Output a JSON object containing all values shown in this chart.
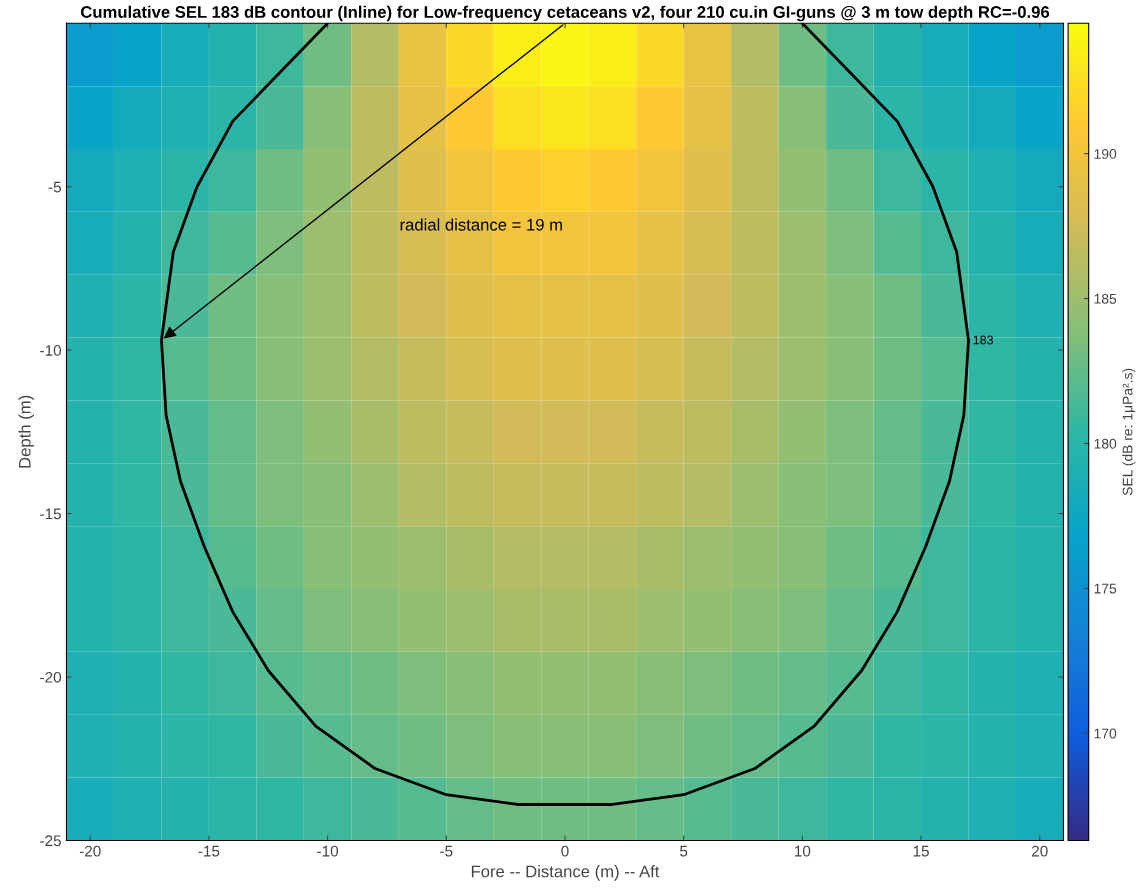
{
  "chart_data": {
    "type": "heatmap",
    "title": "Cumulative SEL 183 dB contour (Inline) for Low-frequency cetaceans v2, four 210 cu.in GI-guns @ 3 m tow depth RC=-0.96",
    "xlabel": "Fore -- Distance (m) -- Aft",
    "ylabel": "Depth (m)",
    "clabel": "SEL (dB re: 1μPa².s)",
    "xlim": [
      -21,
      21
    ],
    "ylim": [
      -25,
      0
    ],
    "xticks": [
      -20,
      -15,
      -10,
      -5,
      0,
      5,
      10,
      15,
      20
    ],
    "yticks": [
      -25,
      -20,
      -15,
      -10,
      -5
    ],
    "clim": [
      166.3,
      194.5
    ],
    "cticks": [
      170,
      175,
      180,
      185,
      190
    ],
    "cells": [
      [
        176,
        177,
        178.5,
        179.5,
        181,
        183,
        186,
        189.5,
        192,
        193.5,
        194,
        193.5,
        192,
        189.5,
        186,
        183,
        181,
        179.5,
        178.5,
        177,
        176
      ],
      [
        177,
        178,
        179,
        180,
        181.5,
        184,
        186.5,
        189,
        191,
        192.5,
        193,
        192.5,
        191,
        189,
        186.5,
        184,
        181.5,
        180,
        179,
        178,
        177
      ],
      [
        178,
        179,
        180,
        181,
        183,
        184.5,
        186.5,
        188.5,
        190,
        191,
        191.5,
        191,
        190,
        188.5,
        186.5,
        184.5,
        183,
        181,
        180,
        179,
        178
      ],
      [
        178.5,
        179.5,
        181,
        182,
        183.5,
        185,
        186.5,
        188,
        189,
        190,
        190,
        190,
        189,
        188,
        186.5,
        185,
        183.5,
        182,
        181,
        179.5,
        178.5
      ],
      [
        179,
        180,
        181.5,
        183,
        184,
        185,
        186.5,
        187.5,
        188.5,
        189,
        189,
        189,
        188.5,
        187.5,
        186.5,
        185,
        184,
        183,
        181.5,
        180,
        179
      ],
      [
        179.5,
        180.5,
        182,
        183,
        184,
        185,
        186,
        187,
        188,
        188.5,
        188.5,
        188.5,
        188,
        187,
        186,
        185,
        184,
        183,
        182,
        180.5,
        179.5
      ],
      [
        179.5,
        180.5,
        181.5,
        182.5,
        183.5,
        184.5,
        185.5,
        186.5,
        187,
        187.5,
        187.5,
        187.5,
        187,
        186.5,
        185.5,
        184.5,
        183.5,
        182.5,
        181.5,
        180.5,
        179.5
      ],
      [
        179.5,
        180.5,
        181.5,
        182.5,
        183.5,
        184,
        185,
        186,
        186.5,
        187,
        187,
        187,
        186.5,
        186,
        185,
        184,
        183.5,
        182.5,
        181.5,
        180.5,
        179.5
      ],
      [
        179.5,
        180,
        181,
        182,
        183,
        184,
        184.5,
        185,
        185.5,
        186,
        186,
        186,
        185.5,
        185,
        184.5,
        184,
        183,
        182,
        181,
        180,
        179.5
      ],
      [
        179.5,
        180,
        181,
        181.5,
        182.5,
        183.5,
        184,
        184.5,
        185,
        185.5,
        185.5,
        185.5,
        185,
        184.5,
        184,
        183.5,
        182.5,
        181.5,
        181,
        180,
        179.5
      ],
      [
        179,
        179.5,
        180.5,
        181,
        182,
        182.5,
        183,
        183.5,
        184,
        184.5,
        184.5,
        184.5,
        184,
        183.5,
        183,
        182.5,
        182,
        181,
        180.5,
        179.5,
        179
      ],
      [
        179,
        179.5,
        180,
        180.5,
        181.5,
        182,
        182.5,
        183,
        183.5,
        184,
        184,
        184,
        183.5,
        183,
        182.5,
        182,
        181.5,
        180.5,
        180,
        179.5,
        179
      ],
      [
        178.5,
        179,
        179.5,
        180,
        180.5,
        181,
        181.5,
        182,
        182.5,
        183,
        183,
        183,
        182.5,
        182,
        181.5,
        181,
        180.5,
        180,
        179.5,
        179,
        178.5
      ]
    ],
    "series": [
      {
        "type": "line",
        "color": "#000000",
        "x": [
          -10,
          -12,
          -14,
          -15.5,
          -16.5,
          -17,
          -16.8,
          -16.2,
          -15.2,
          -14,
          -12.5,
          -10.5,
          -8,
          -5,
          -2,
          0,
          2,
          5,
          8,
          10.5,
          12.5,
          14,
          15.2,
          16.2,
          16.8,
          17,
          16.5,
          15.5,
          14,
          12,
          10
        ],
        "values": [
          0,
          -1.5,
          -3,
          -5,
          -7,
          -9.7,
          -12,
          -14,
          -16,
          -18,
          -19.8,
          -21.5,
          -22.8,
          -23.6,
          -23.9,
          -23.9,
          -23.9,
          -23.6,
          -22.8,
          -21.5,
          -19.8,
          -18,
          -16,
          -14,
          -12,
          -9.7,
          -7,
          -5,
          -3,
          -1.5,
          0
        ]
      }
    ],
    "annotations": [
      "radial distance = 19 m",
      {
        "text": "183",
        "x": 17,
        "y": -9.9
      }
    ]
  }
}
